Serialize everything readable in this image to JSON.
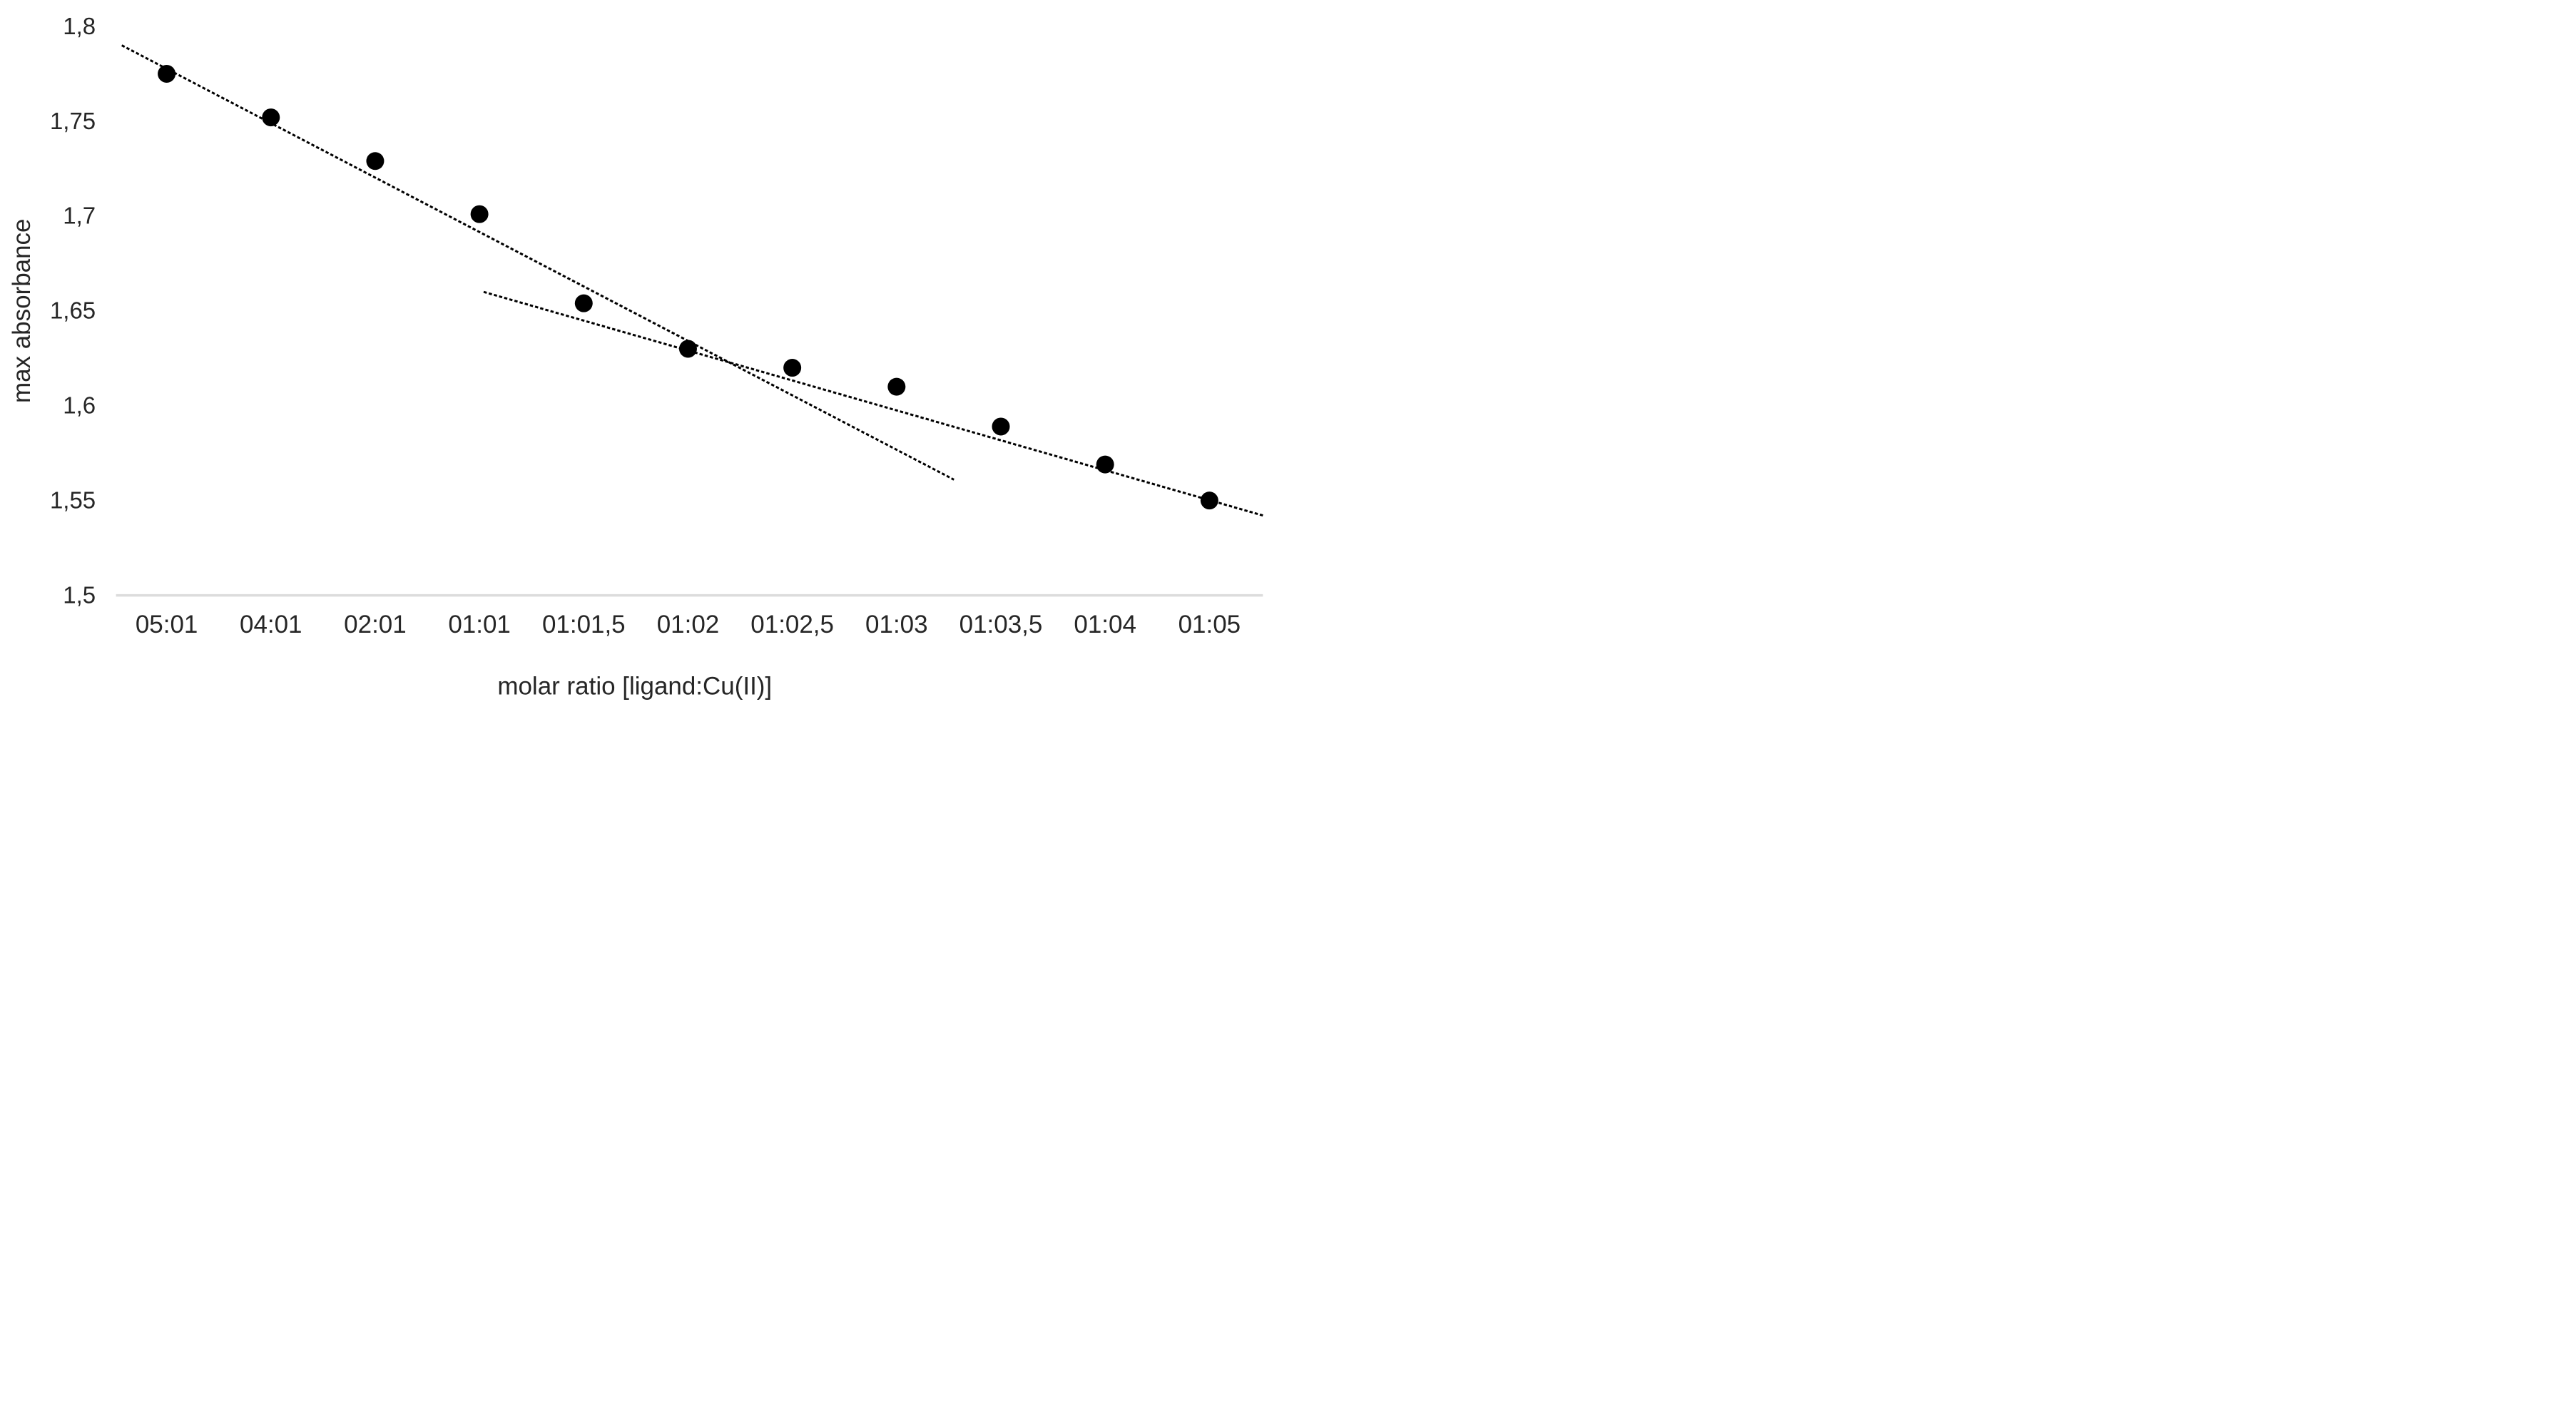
{
  "figure": {
    "background_color": "#ffffff",
    "text_color": "#262626"
  },
  "chart_data": {
    "type": "scatter",
    "title": "",
    "xlabel": "molar ratio [ligand:Cu(II)]",
    "ylabel": "max absorbance",
    "categories": [
      "05:01",
      "04:01",
      "02:01",
      "01:01",
      "01:01,5",
      "01:02",
      "01:02,5",
      "01:03",
      "01:03,5",
      "01:04",
      "01:05"
    ],
    "values": [
      1.775,
      1.752,
      1.729,
      1.701,
      1.654,
      1.63,
      1.62,
      1.61,
      1.589,
      1.569,
      1.55
    ],
    "ylim": [
      1.5,
      1.8
    ],
    "yticks": [
      "1,8",
      "1,75",
      "1,7",
      "1,65",
      "1,6",
      "1,55",
      "1,5"
    ],
    "ytick_values": [
      1.8,
      1.75,
      1.7,
      1.65,
      1.6,
      1.55,
      1.5
    ],
    "decimal_separator": ",",
    "grid": false,
    "legend_position": "none",
    "marker_color": "#000000",
    "marker_shape": "circle",
    "axis_line_color": "#dcdcdc",
    "trendline_color": "#000000",
    "trendlines": [
      {
        "name": "steep-trendline",
        "x1_index": -0.43,
        "y1": 1.79,
        "x2_index": 7.55,
        "y2": 1.561
      },
      {
        "name": "shallow-trendline",
        "x1_index": 3.04,
        "y1": 1.66,
        "x2_index": 10.52,
        "y2": 1.542
      }
    ]
  }
}
